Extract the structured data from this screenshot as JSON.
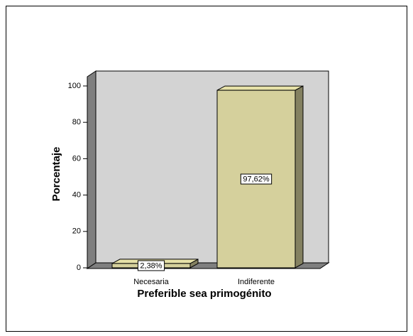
{
  "chart_data": {
    "type": "bar3d",
    "x_label": "Preferible sea primogénito",
    "y_label": "Porcentaje",
    "categories": [
      "Necesaria",
      "Indiferente"
    ],
    "values": [
      2.38,
      97.62
    ],
    "value_labels": [
      "2,38%",
      "97,62%"
    ],
    "color": "#d5d09c",
    "ylim": [
      0,
      100
    ],
    "yticks": [
      0,
      20,
      40,
      60,
      80,
      100
    ],
    "grid": false
  }
}
